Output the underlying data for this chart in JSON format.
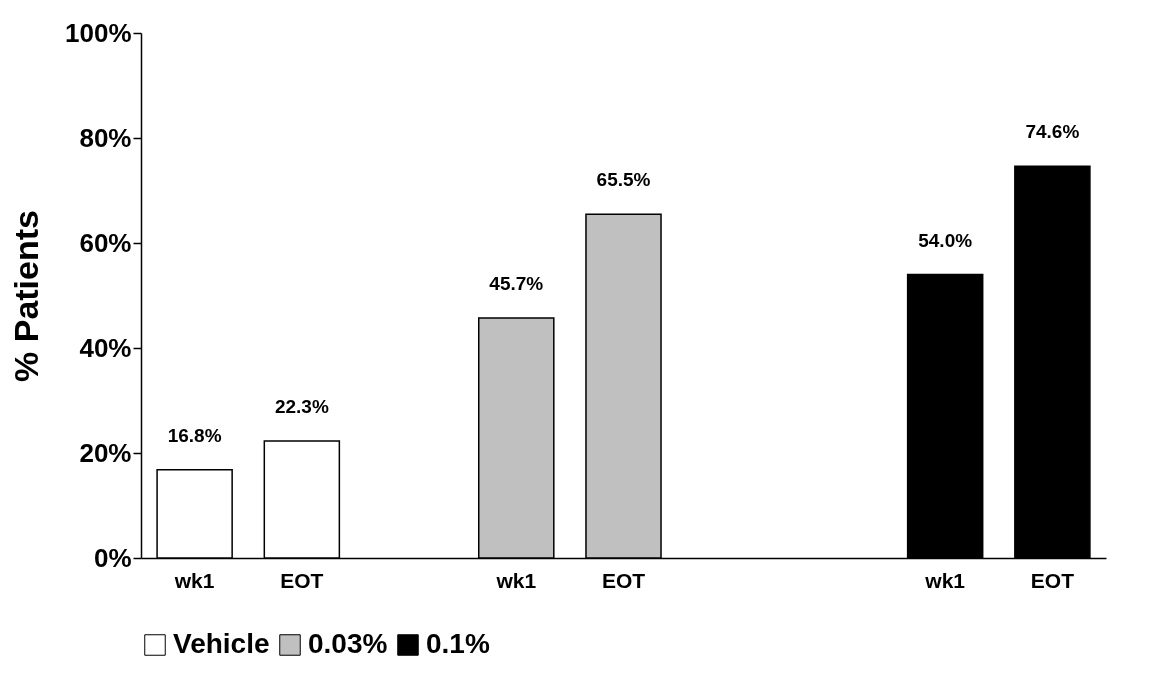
{
  "chart_data": {
    "type": "bar",
    "ylabel": "% Patients",
    "categories": [
      "wk1",
      "EOT",
      null,
      "wk1",
      "EOT",
      null,
      null,
      "wk1",
      "EOT"
    ],
    "series": [
      {
        "name": "Vehicle",
        "color": "#ffffff",
        "values": [
          16.8,
          22.3,
          null,
          null,
          null,
          null,
          null,
          null,
          null
        ],
        "value_labels": [
          "16.8%",
          "22.3%",
          null,
          null,
          null,
          null,
          null,
          null,
          null
        ]
      },
      {
        "name": "0.03%",
        "color": "#c0c0c0",
        "values": [
          null,
          null,
          null,
          45.7,
          65.5,
          null,
          null,
          null,
          null
        ],
        "value_labels": [
          null,
          null,
          null,
          "45.7%",
          "65.5%",
          null,
          null,
          null,
          null
        ]
      },
      {
        "name": "0.1%",
        "color": "#000000",
        "values": [
          null,
          null,
          null,
          null,
          null,
          null,
          null,
          54.0,
          74.6
        ],
        "value_labels": [
          null,
          null,
          null,
          null,
          null,
          null,
          null,
          "54.0%",
          "74.6%"
        ]
      }
    ],
    "ylim": [
      0,
      100
    ],
    "yticks": [
      {
        "value": 0,
        "label": "0%"
      },
      {
        "value": 20,
        "label": "20%"
      },
      {
        "value": 40,
        "label": "40%"
      },
      {
        "value": 60,
        "label": "60%"
      },
      {
        "value": 80,
        "label": "80%"
      },
      {
        "value": 100,
        "label": "100%"
      }
    ],
    "grid": false,
    "legend": "bottom"
  }
}
